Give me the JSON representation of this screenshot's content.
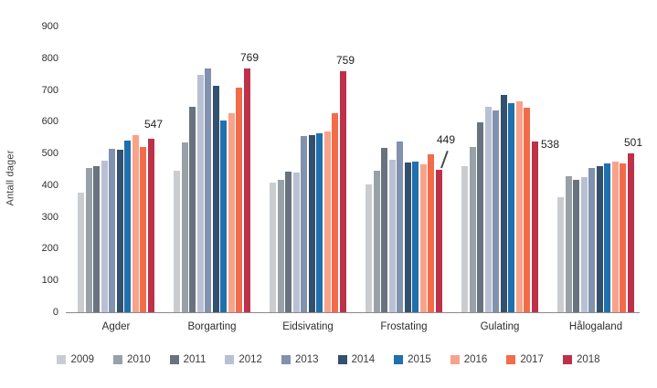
{
  "chart_data": {
    "type": "bar",
    "title": "",
    "xlabel": "",
    "ylabel": "Antall dager",
    "ylim": [
      0,
      900
    ],
    "ytick_step": 100,
    "grid": false,
    "legend_position": "bottom",
    "background": "#ffffff",
    "axis_line_color": "#8a8a8a",
    "categories": [
      "Agder",
      "Borgarting",
      "Eidsivating",
      "Frostating",
      "Gulating",
      "Hålogaland"
    ],
    "series": [
      {
        "name": "2009",
        "color": "#c9cdd1",
        "values": [
          378,
          447,
          408,
          404,
          460,
          362
        ]
      },
      {
        "name": "2010",
        "color": "#99a1a8",
        "values": [
          455,
          535,
          417,
          446,
          520,
          429
        ]
      },
      {
        "name": "2011",
        "color": "#69737d",
        "values": [
          460,
          646,
          444,
          519,
          597,
          417
        ]
      },
      {
        "name": "2012",
        "color": "#b8c1d3",
        "values": [
          478,
          748,
          441,
          480,
          646,
          426
        ]
      },
      {
        "name": "2013",
        "color": "#8191ae",
        "values": [
          515,
          768,
          556,
          537,
          635,
          455
        ]
      },
      {
        "name": "2014",
        "color": "#33506e",
        "values": [
          512,
          712,
          557,
          472,
          685,
          461
        ]
      },
      {
        "name": "2015",
        "color": "#1f70ad",
        "values": [
          541,
          605,
          564,
          474,
          658,
          469
        ]
      },
      {
        "name": "2016",
        "color": "#f8a389",
        "values": [
          558,
          626,
          570,
          465,
          663,
          475
        ]
      },
      {
        "name": "2017",
        "color": "#f26c4a",
        "values": [
          521,
          706,
          627,
          497,
          643,
          469
        ]
      },
      {
        "name": "2018",
        "color": "#bf3049",
        "values": [
          547,
          769,
          759,
          449,
          538,
          501
        ]
      }
    ],
    "annotations": [
      {
        "category": "Agder",
        "series": "2018",
        "text": "547",
        "placement": "above"
      },
      {
        "category": "Borgarting",
        "series": "2018",
        "text": "769",
        "placement": "above"
      },
      {
        "category": "Eidsivating",
        "series": "2018",
        "text": "759",
        "placement": "above"
      },
      {
        "category": "Frostating",
        "series": "2018",
        "text": "449",
        "placement": "above-leader"
      },
      {
        "category": "Gulating",
        "series": "2018",
        "text": "538",
        "placement": "right"
      },
      {
        "category": "Hålogaland",
        "series": "2018",
        "text": "501",
        "placement": "above"
      }
    ]
  }
}
